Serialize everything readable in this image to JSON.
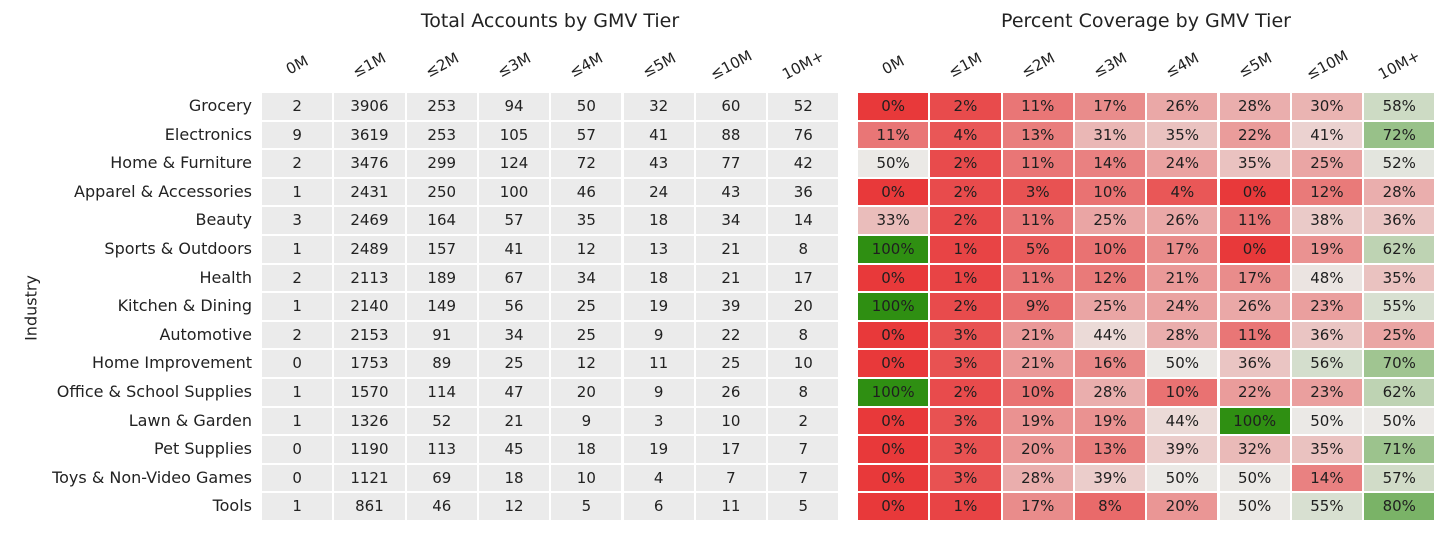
{
  "chart_data": [
    {
      "type": "table",
      "title": "Total Accounts by GMV Tier",
      "ylabel": "Industry",
      "columns": [
        "0M",
        "≤1M",
        "≤2M",
        "≤3M",
        "≤4M",
        "≤5M",
        "≤10M",
        "10M+"
      ],
      "rows": [
        "Grocery",
        "Electronics",
        "Home & Furniture",
        "Apparel & Accessories",
        "Beauty",
        "Sports & Outdoors",
        "Health",
        "Kitchen & Dining",
        "Automotive",
        "Home Improvement",
        "Office & School Supplies",
        "Lawn & Garden",
        "Pet Supplies",
        "Toys & Non-Video Games",
        "Tools"
      ],
      "values": [
        [
          2,
          3906,
          253,
          94,
          50,
          32,
          60,
          52
        ],
        [
          9,
          3619,
          253,
          105,
          57,
          41,
          88,
          76
        ],
        [
          2,
          3476,
          299,
          124,
          72,
          43,
          77,
          42
        ],
        [
          1,
          2431,
          250,
          100,
          46,
          24,
          43,
          36
        ],
        [
          3,
          2469,
          164,
          57,
          35,
          18,
          34,
          14
        ],
        [
          1,
          2489,
          157,
          41,
          12,
          13,
          21,
          8
        ],
        [
          2,
          2113,
          189,
          67,
          34,
          18,
          21,
          17
        ],
        [
          1,
          2140,
          149,
          56,
          25,
          19,
          39,
          20
        ],
        [
          2,
          2153,
          91,
          34,
          25,
          9,
          22,
          8
        ],
        [
          0,
          1753,
          89,
          25,
          12,
          11,
          25,
          10
        ],
        [
          1,
          1570,
          114,
          47,
          20,
          9,
          26,
          8
        ],
        [
          1,
          1326,
          52,
          21,
          9,
          3,
          10,
          2
        ],
        [
          0,
          1190,
          113,
          45,
          18,
          19,
          17,
          7
        ],
        [
          0,
          1121,
          69,
          18,
          10,
          4,
          7,
          7
        ],
        [
          1,
          861,
          46,
          12,
          5,
          6,
          11,
          5
        ]
      ],
      "cell_color": "#ebebeb"
    },
    {
      "type": "heatmap",
      "title": "Percent Coverage by GMV Tier",
      "columns": [
        "0M",
        "≤1M",
        "≤2M",
        "≤3M",
        "≤4M",
        "≤5M",
        "≤10M",
        "10M+"
      ],
      "rows": [
        "Grocery",
        "Electronics",
        "Home & Furniture",
        "Apparel & Accessories",
        "Beauty",
        "Sports & Outdoors",
        "Health",
        "Kitchen & Dining",
        "Automotive",
        "Home Improvement",
        "Office & School Supplies",
        "Lawn & Garden",
        "Pet Supplies",
        "Toys & Non-Video Games",
        "Tools"
      ],
      "values": [
        [
          0,
          2,
          11,
          17,
          26,
          28,
          30,
          58
        ],
        [
          11,
          4,
          13,
          31,
          35,
          22,
          41,
          72
        ],
        [
          50,
          2,
          11,
          14,
          24,
          35,
          25,
          52
        ],
        [
          0,
          2,
          3,
          10,
          4,
          0,
          12,
          28
        ],
        [
          33,
          2,
          11,
          25,
          26,
          11,
          38,
          36
        ],
        [
          100,
          1,
          5,
          10,
          17,
          0,
          19,
          62
        ],
        [
          0,
          1,
          11,
          12,
          21,
          17,
          48,
          35
        ],
        [
          100,
          2,
          9,
          25,
          24,
          26,
          23,
          55
        ],
        [
          0,
          3,
          21,
          44,
          28,
          11,
          36,
          25
        ],
        [
          0,
          3,
          21,
          16,
          50,
          36,
          56,
          70
        ],
        [
          100,
          2,
          10,
          28,
          10,
          22,
          23,
          62
        ],
        [
          0,
          3,
          19,
          19,
          44,
          100,
          50,
          50
        ],
        [
          0,
          3,
          20,
          13,
          39,
          32,
          35,
          71
        ],
        [
          0,
          3,
          28,
          39,
          50,
          50,
          14,
          57
        ],
        [
          0,
          1,
          17,
          8,
          20,
          50,
          55,
          80
        ]
      ],
      "value_suffix": "%",
      "colorscale": {
        "low": "#e8393a",
        "mid": "#ebe9e6",
        "high": "#2f8f12",
        "midpoint": 50
      }
    }
  ]
}
